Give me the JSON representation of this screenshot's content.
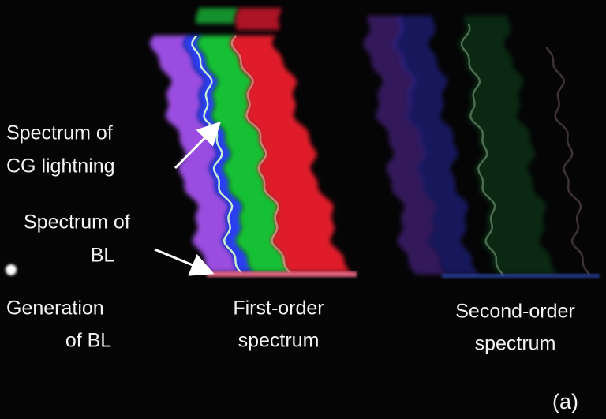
{
  "labels": [
    {
      "lines": [
        "Spectrum of",
        "CG lightning"
      ]
    },
    {
      "lines": [
        "Spectrum of",
        "BL"
      ]
    },
    {
      "lines": [
        "Generation",
        "of BL"
      ]
    },
    {
      "lines": [
        "First-order",
        "spectrum"
      ]
    },
    {
      "lines": [
        "Second-order",
        "spectrum"
      ]
    }
  ],
  "panel_label": "(a)"
}
